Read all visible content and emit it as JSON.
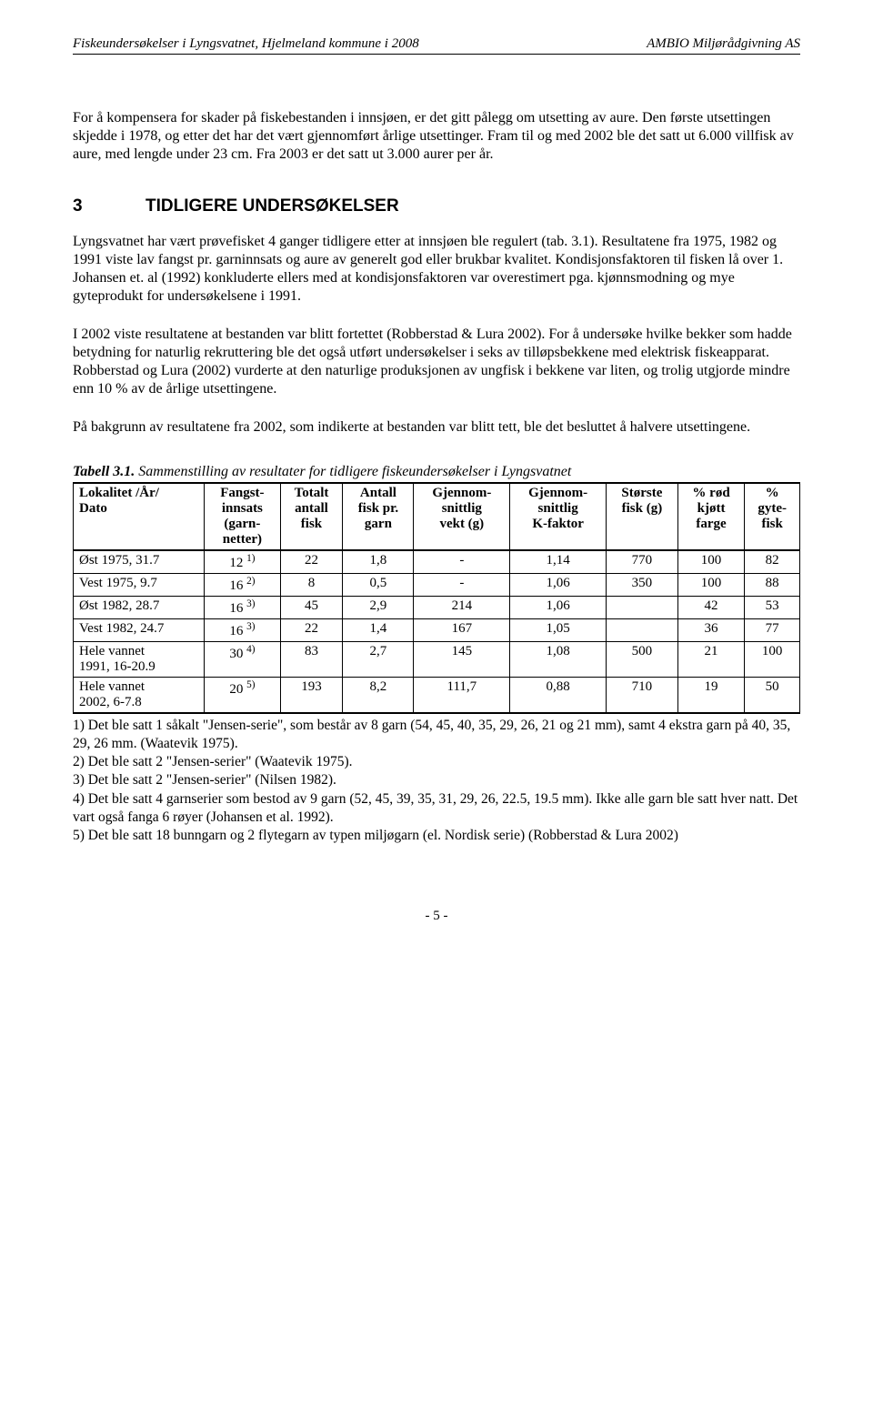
{
  "header": {
    "left": "Fiskeundersøkelser i Lyngsvatnet, Hjelmeland kommune i 2008",
    "right": "AMBIO Miljørådgivning AS"
  },
  "paragraphs": {
    "p1": "For å kompensera for skader på fiskebestanden i innsjøen, er det gitt pålegg om utsetting av aure. Den første utsettingen skjedde i 1978, og etter det har det vært gjennomført årlige utsettinger. Fram til og med 2002 ble det satt ut 6.000 villfisk av aure, med lengde under 23 cm. Fra 2003 er det satt ut 3.000 aurer per år.",
    "p2": "Lyngsvatnet har vært prøvefisket 4 ganger tidligere etter at innsjøen ble regulert (tab. 3.1). Resultatene fra 1975, 1982 og 1991 viste lav fangst pr. garninnsats og aure av generelt god eller brukbar kvalitet. Kondisjonsfaktoren til fisken lå over 1. Johansen et. al (1992) konkluderte ellers med at kondisjonsfaktoren var overestimert pga. kjønnsmodning og mye gyteprodukt for undersøkelsene i 1991.",
    "p3": "I 2002 viste resultatene at bestanden var blitt fortettet (Robberstad & Lura 2002). For å undersøke hvilke bekker som hadde betydning for naturlig rekruttering ble det også utført undersøkelser i seks av tilløpsbekkene med elektrisk fiskeapparat. Robberstad og Lura (2002) vurderte at den naturlige produksjonen av ungfisk i bekkene var liten, og trolig utgjorde mindre enn 10 % av de årlige utsettingene.",
    "p4": "På bakgrunn av resultatene fra 2002, som indikerte at bestanden var blitt tett, ble det besluttet å halvere utsettingene."
  },
  "section": {
    "num": "3",
    "title": "TIDLIGERE UNDERSØKELSER"
  },
  "tableCaption": {
    "label": "Tabell 3.1.",
    "text": " Sammenstilling av resultater for tidligere fiskeundersøkelser i Lyngsvatnet"
  },
  "table": {
    "columns": [
      "Lokalitet /År/ Dato",
      "Fangst-innsats (garn-netter)",
      "Totalt antall fisk",
      "Antall fisk pr. garn",
      "Gjennom-snittlig vekt (g)",
      "Gjennom-snittlig K-faktor",
      "Største fisk (g)",
      "% rød kjøtt farge",
      "% gyte-fisk"
    ],
    "rows": [
      {
        "label": "Øst 1975, 31.7",
        "innsats": "12",
        "sup": "1)",
        "c": [
          "22",
          "1,8",
          "-",
          "1,14",
          "770",
          "100",
          "82"
        ]
      },
      {
        "label": "Vest 1975, 9.7",
        "innsats": "16",
        "sup": "2)",
        "c": [
          "8",
          "0,5",
          "-",
          "1,06",
          "350",
          "100",
          "88"
        ]
      },
      {
        "label": "Øst 1982, 28.7",
        "innsats": "16",
        "sup": "3)",
        "c": [
          "45",
          "2,9",
          "214",
          "1,06",
          "",
          "42",
          "53"
        ]
      },
      {
        "label": "Vest 1982, 24.7",
        "innsats": "16",
        "sup": "3)",
        "c": [
          "22",
          "1,4",
          "167",
          "1,05",
          "",
          "36",
          "77"
        ]
      },
      {
        "label": "Hele vannet 1991, 16-20.9",
        "innsats": "30",
        "sup": "4)",
        "c": [
          "83",
          "2,7",
          "145",
          "1,08",
          "500",
          "21",
          "100"
        ]
      },
      {
        "label": "Hele vannet 2002, 6-7.8",
        "innsats": "20",
        "sup": "5)",
        "c": [
          "193",
          "8,2",
          "111,7",
          "0,88",
          "710",
          "19",
          "50"
        ]
      }
    ]
  },
  "footnotes": {
    "f1": "1) Det ble satt 1 såkalt \"Jensen-serie\", som består av 8 garn (54, 45, 40, 35, 29, 26, 21 og 21 mm), samt 4 ekstra garn på 40, 35, 29, 26 mm. (Waatevik 1975).",
    "f2": "2) Det ble satt 2 \"Jensen-serier\" (Waatevik 1975).",
    "f3": "3) Det ble satt 2 \"Jensen-serier\" (Nilsen 1982).",
    "f4": "4) Det ble satt 4 garnserier som bestod av 9 garn (52, 45, 39, 35, 31, 29, 26, 22.5, 19.5 mm). Ikke alle garn ble satt hver natt. Det vart også fanga 6 røyer (Johansen et al. 1992).",
    "f5": "5) Det ble satt 18 bunngarn og 2 flytegarn av typen miljøgarn (el. Nordisk serie) (Robberstad & Lura 2002)"
  },
  "pageNumber": "- 5 -"
}
